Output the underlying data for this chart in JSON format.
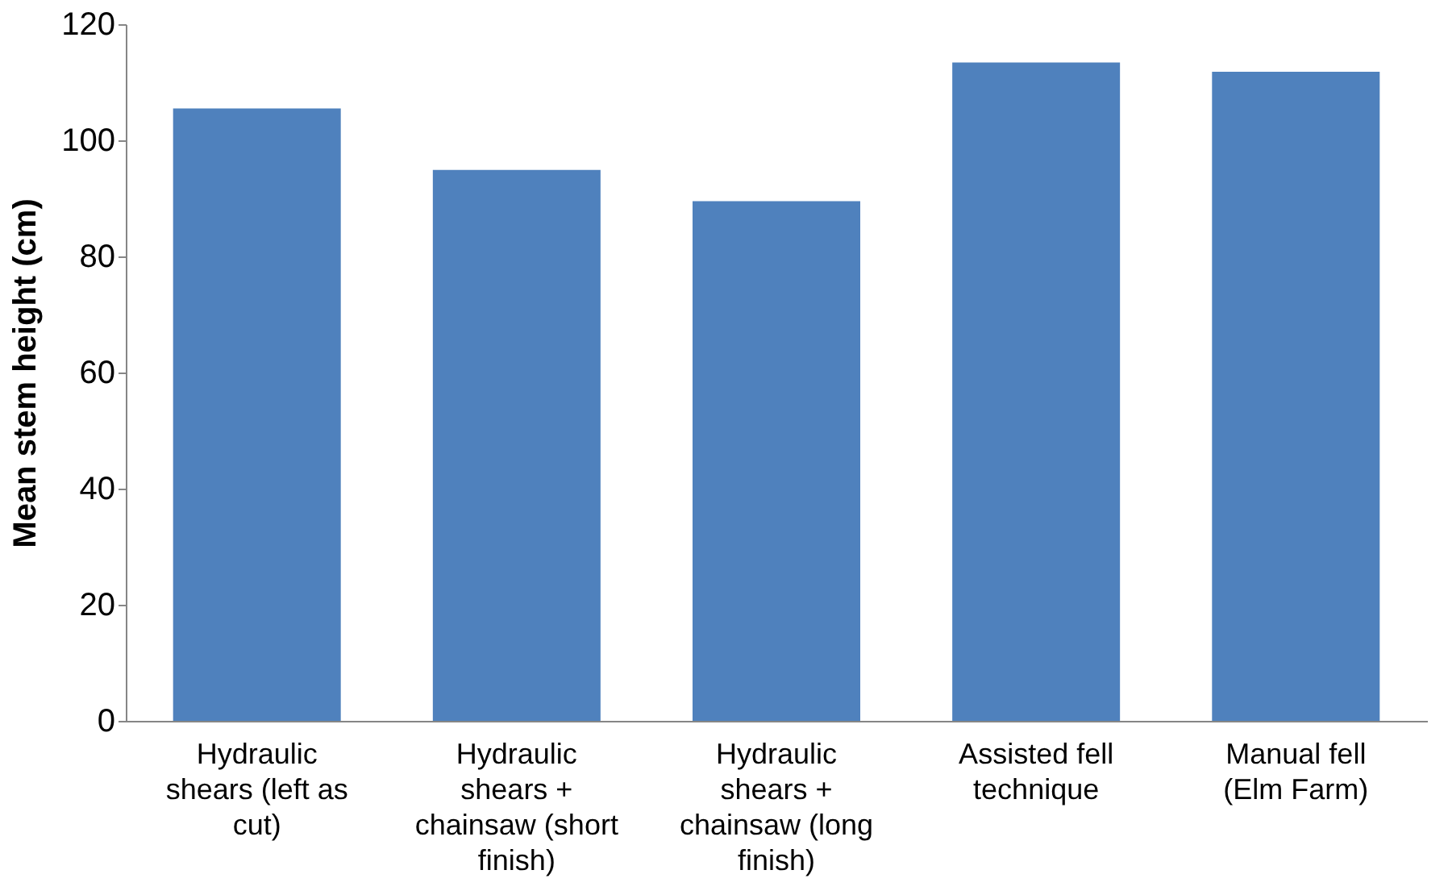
{
  "chart_data": {
    "type": "bar",
    "ylabel": "Mean stem height (cm)",
    "categories": [
      "Hydraulic shears (left as cut)",
      "Hydraulic shears + chainsaw (short finish)",
      "Hydraulic shears + chainsaw (long finish)",
      "Assisted fell technique",
      "Manual fell (Elm Farm)"
    ],
    "values": [
      105.5,
      94.9,
      89.5,
      113.4,
      111.8
    ],
    "color": "#4f81bd",
    "ylim": [
      0,
      120
    ],
    "yticks": [
      0,
      20,
      40,
      60,
      80,
      100,
      120
    ],
    "grid": false
  }
}
